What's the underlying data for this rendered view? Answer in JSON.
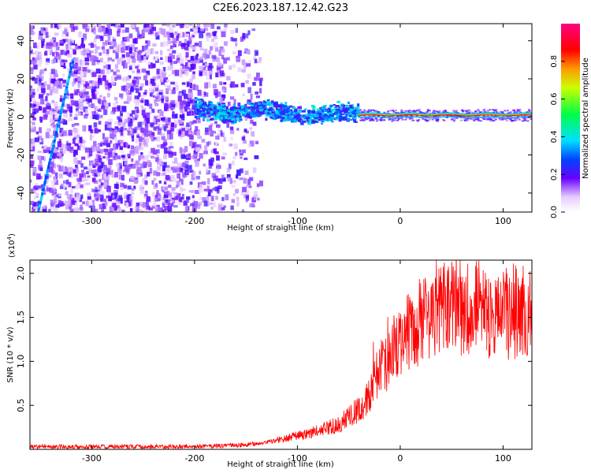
{
  "title": "C2E6.2023.187.12.42.G23",
  "chart_data": [
    {
      "type": "heatmap",
      "xlabel": "Height of straight line (km)",
      "ylabel": "Frequency (Hz)",
      "xlim": [
        -360,
        128
      ],
      "ylim": [
        -50,
        49
      ],
      "x_ticks": [
        -300,
        -200,
        -100,
        0,
        100
      ],
      "y_ticks": [
        -40,
        -20,
        0,
        20,
        40
      ],
      "colorbar": {
        "label": "Normalized spectral amplitude",
        "range": [
          0,
          1
        ],
        "ticks": [
          "0.0",
          "0.2",
          "0.4",
          "0.6",
          "0.8"
        ]
      },
      "regions": [
        {
          "name": "noise",
          "x_range": [
            -360,
            -135
          ],
          "freq_range": [
            -50,
            49
          ],
          "amplitude": 0.15
        },
        {
          "name": "band",
          "x_range": [
            -200,
            -40
          ],
          "freq_center": 3,
          "amplitude": 0.3
        },
        {
          "name": "streak",
          "x": [
            -352,
            -318
          ],
          "freq": [
            -50,
            30
          ],
          "amplitude": 0.35
        },
        {
          "name": "line",
          "x_range": [
            -40,
            128
          ],
          "freq_center": 0.8,
          "amplitude": 0.95
        }
      ]
    },
    {
      "type": "line",
      "xlabel": "Height of straight line (km)",
      "ylabel": "SNR (10 * v/v)",
      "y_multiplier": "(x10",
      "y_exponent": "4",
      "y_exponent_close": ")",
      "xlim": [
        -360,
        128
      ],
      "ylim": [
        0,
        2.15
      ],
      "x_ticks": [
        -300,
        -200,
        -100,
        0,
        100
      ],
      "y_ticks": [
        "0.5",
        "1.0",
        "1.5",
        "2.0"
      ],
      "color": "#ff0000",
      "trend": [
        {
          "x": -360,
          "y": 0.03
        },
        {
          "x": -200,
          "y": 0.03
        },
        {
          "x": -150,
          "y": 0.05
        },
        {
          "x": -120,
          "y": 0.1
        },
        {
          "x": -90,
          "y": 0.18
        },
        {
          "x": -60,
          "y": 0.28
        },
        {
          "x": -35,
          "y": 0.5
        },
        {
          "x": -20,
          "y": 0.9
        },
        {
          "x": -5,
          "y": 1.15
        },
        {
          "x": 10,
          "y": 1.35
        },
        {
          "x": 25,
          "y": 1.55
        },
        {
          "x": 50,
          "y": 1.65
        },
        {
          "x": 80,
          "y": 1.6
        },
        {
          "x": 100,
          "y": 1.55
        },
        {
          "x": 128,
          "y": 1.6
        }
      ]
    }
  ]
}
